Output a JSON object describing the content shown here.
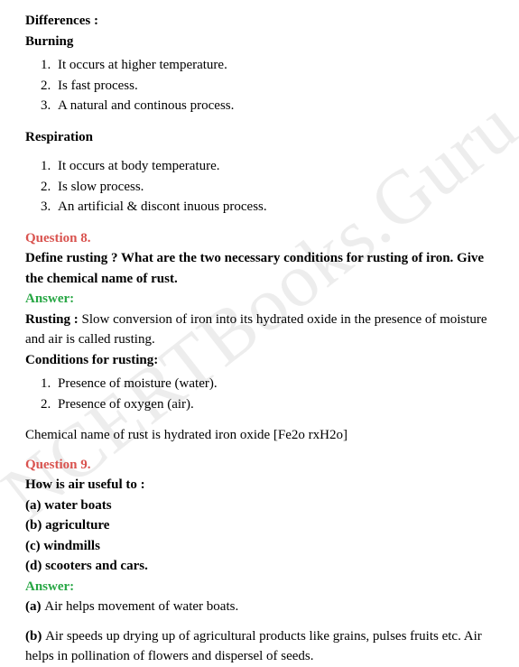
{
  "watermark": "NCERTBooks.Guru",
  "differences": {
    "heading": "Differences :",
    "burning": {
      "title": "Burning",
      "items": [
        "It occurs at higher temperature.",
        "Is fast process.",
        "A natural and continous process."
      ]
    },
    "respiration": {
      "title": "Respiration",
      "items": [
        "It occurs at body temperature.",
        "Is slow process.",
        "An artificial & discont inuous process."
      ]
    }
  },
  "q8": {
    "label": "Question 8.",
    "prompt": "Define rusting ? What are the two necessary conditions for rusting of iron. Give the chemical name of rust.",
    "answer_label": "Answer:",
    "rusting_term": "Rusting : ",
    "rusting_def": "Slow conversion of iron into its hydrated oxide in the presence of moisture and air is called rusting.",
    "conditions_heading": "Conditions for rusting:",
    "conditions": [
      "Presence of moisture (water).",
      "Presence of oxygen (air)."
    ],
    "chemical": "Chemical name of rust is hydrated iron oxide [Fe2o rxH2o]"
  },
  "q9": {
    "label": "Question 9.",
    "prompt": "How is air useful to :",
    "opts": {
      "a": "(a) water boats",
      "b": "(b) agriculture",
      "c": "(c) windmills",
      "d": "(d) scooters and cars."
    },
    "answer_label": "Answer:",
    "ans_a_label": "(a) ",
    "ans_a": "Air helps movement of water boats.",
    "ans_b_label": "(b) ",
    "ans_b": "Air speeds up drying up of agricultural products like grains, pulses fruits etc. Air helps in pollination of flowers and dispersel of seeds."
  }
}
